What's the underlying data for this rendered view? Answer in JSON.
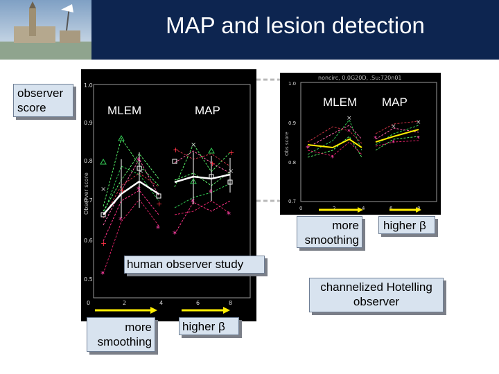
{
  "slide": {
    "title": "MAP and lesion detection",
    "colors": {
      "header": "#0d2550",
      "box_fill": "#d8e3ef",
      "arrow": "#ffee00"
    }
  },
  "callouts": {
    "observer_score": "observer score",
    "human_study": "human observer study",
    "hotelling": "channelized Hotelling observer",
    "left_more_smoothing": "more smoothing",
    "left_higher_beta": "higher β",
    "right_more_smoothing": "more smoothing",
    "right_higher_beta": "higher β"
  },
  "left_plot": {
    "labels": {
      "mlem": "MLEM",
      "map": "MAP",
      "ylabel": "Observer score"
    },
    "yticks": [
      "1.0",
      "0.9",
      "0.8",
      "0.7",
      "0.6",
      "0.5"
    ],
    "xticks": [
      "0",
      "2",
      "4",
      "6",
      "8"
    ]
  },
  "right_plot": {
    "labels": {
      "mlem": "MLEM",
      "map": "MAP",
      "ylabel": "Obs score"
    },
    "header_text": "noncirc, 0.0G20D, .Su:720n01",
    "yticks": [
      "1.0",
      "0.9",
      "0.8",
      "0.7"
    ],
    "xticks": [
      "0",
      "2",
      "4",
      "6",
      "8"
    ]
  }
}
